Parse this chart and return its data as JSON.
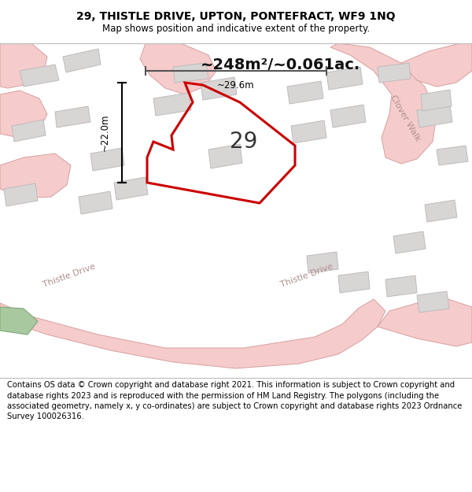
{
  "title": "29, THISTLE DRIVE, UPTON, PONTEFRACT, WF9 1NQ",
  "subtitle": "Map shows position and indicative extent of the property.",
  "area_label": "~248m²/~0.061ac.",
  "number_label": "29",
  "dim_width_label": "~29.6m",
  "dim_height_label": "~22.0m",
  "footer": "Contains OS data © Crown copyright and database right 2021. This information is subject to Crown copyright and database rights 2023 and is reproduced with the permission of HM Land Registry. The polygons (including the associated geometry, namely x, y co-ordinates) are subject to Crown copyright and database rights 2023 Ordnance Survey 100026316.",
  "map_bg": "#f0eeee",
  "road_fill": "#f5cbcb",
  "road_edge": "#d8a0a0",
  "building_fill": "#d8d5d5",
  "building_edge": "#bfbbbb",
  "highlight_color": "#cc0000",
  "green_fill": "#a8c8a0",
  "green_edge": "#80a878",
  "text_road_color": "#b09090",
  "title_fontsize": 10,
  "subtitle_fontsize": 8.5,
  "footer_fontsize": 7.2,
  "area_fontsize": 14,
  "number_fontsize": 20,
  "dim_fontsize": 8.5
}
